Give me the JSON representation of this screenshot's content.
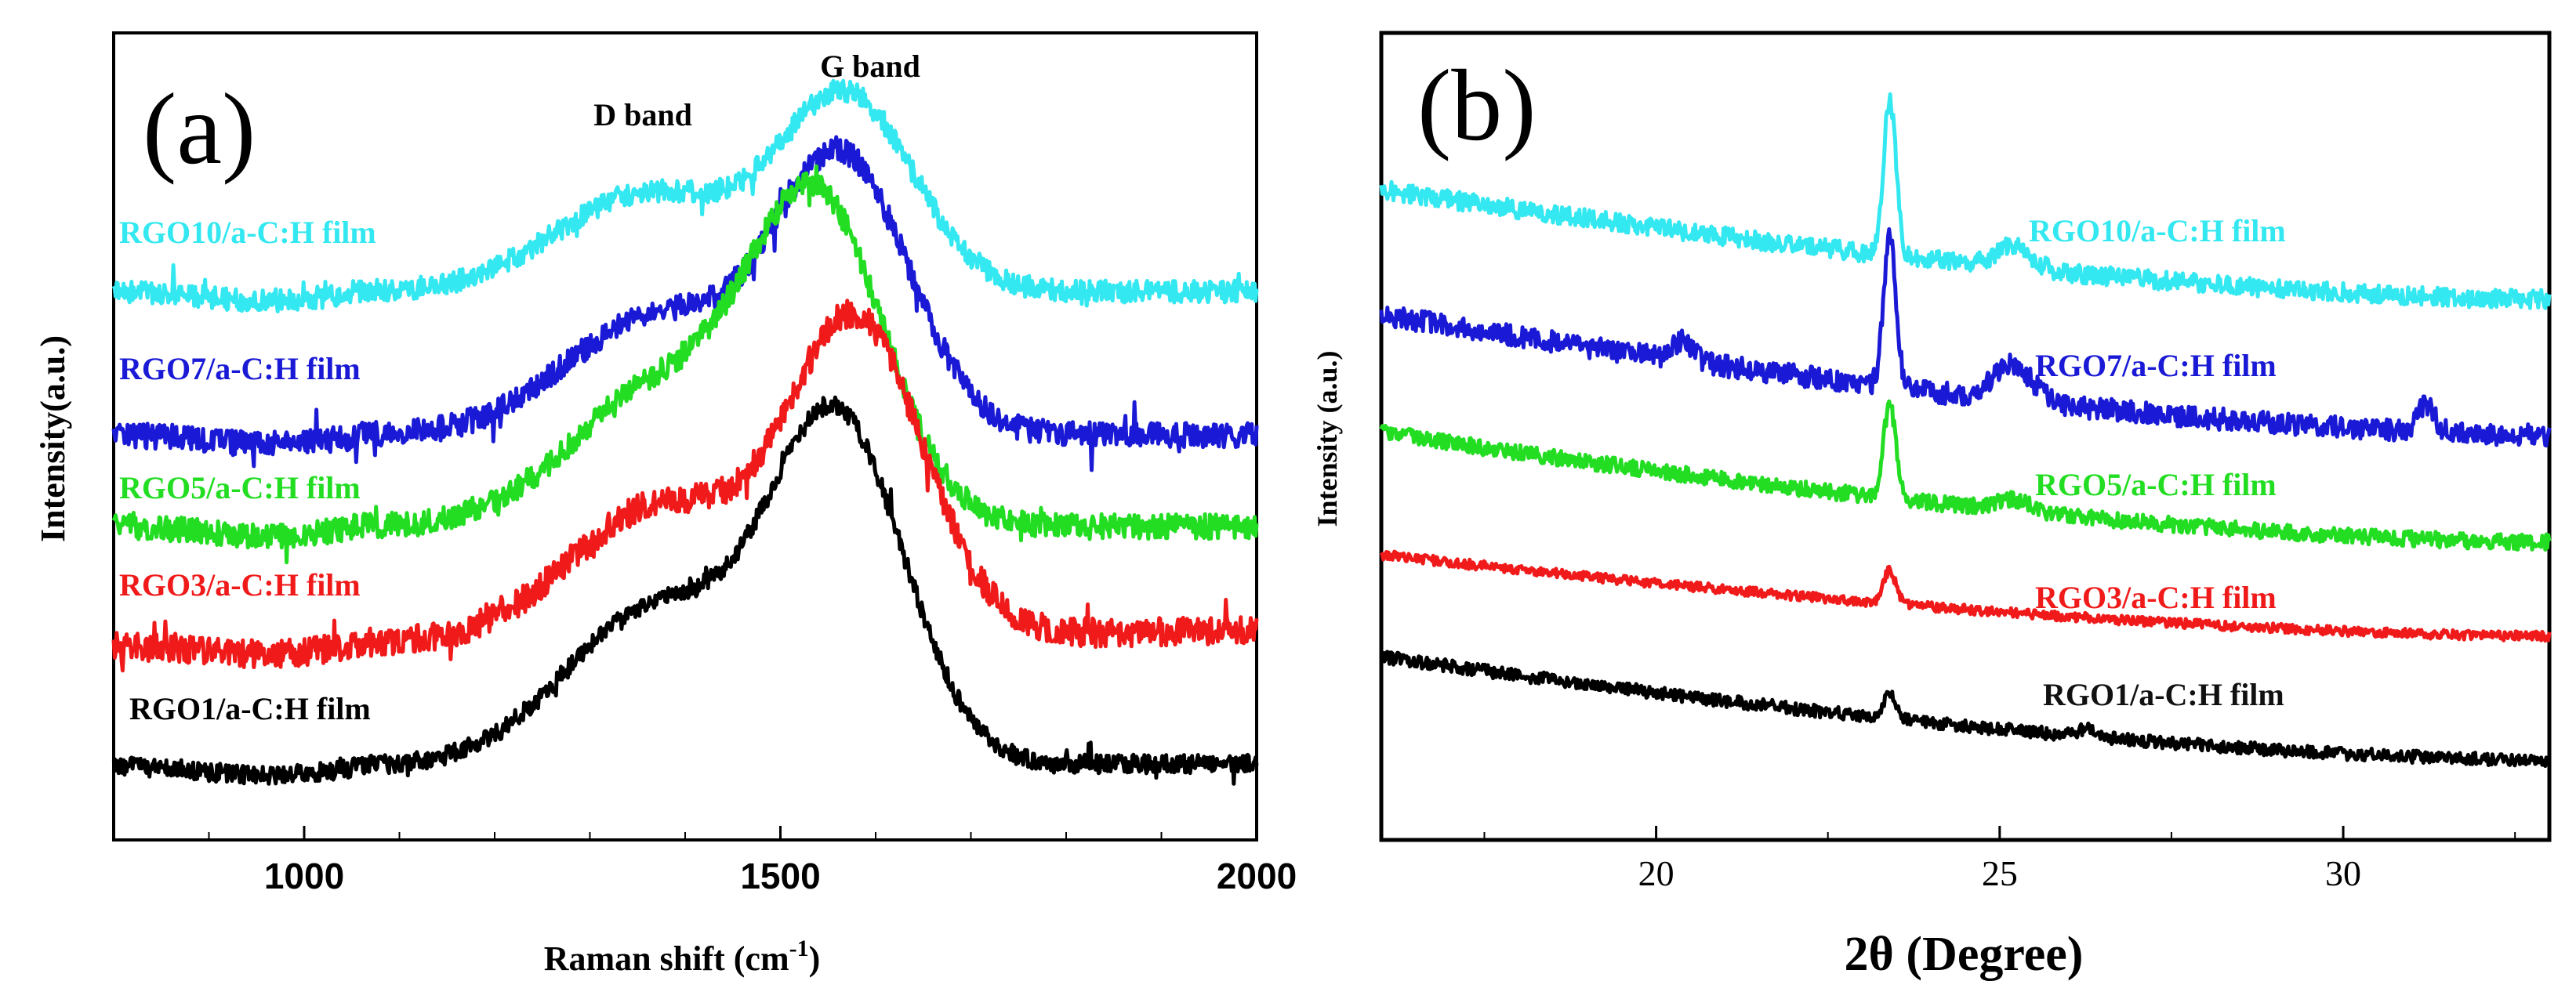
{
  "chart_data": [
    {
      "type": "line",
      "panel": "(a)",
      "xlabel": "Raman shift (cm",
      "xlabel_sup": "-1",
      "xlabel_close": ")",
      "ylabel": "Intensity(a.u.)",
      "xlim": [
        800,
        2000
      ],
      "xticks": [
        "1000",
        "1500",
        "2000"
      ],
      "xtick_values": [
        1000,
        1500,
        2000
      ],
      "annotations": [
        {
          "text": "D band",
          "x": 1360
        },
        {
          "text": "G band",
          "x": 1575
        }
      ],
      "series": [
        {
          "name": "RGO10/a-C:H film",
          "color": "#33e8f0"
        },
        {
          "name": "RGO7/a-C:H film",
          "color": "#1a1ad6"
        },
        {
          "name": "RGO5/a-C:H film",
          "color": "#22dd22"
        },
        {
          "name": "RGO3/a-C:H film",
          "color": "#f01a1a"
        },
        {
          "name": "RGO1/a-C:H film",
          "color": "#000000"
        }
      ]
    },
    {
      "type": "line",
      "panel": "(b)",
      "xlabel": "2θ (Degree)",
      "ylabel": "Intensity (a.u.)",
      "xlim": [
        16,
        33
      ],
      "xticks": [
        "20",
        "25",
        "30"
      ],
      "xtick_values": [
        20,
        25,
        30
      ],
      "series": [
        {
          "name": "RGO10/a-C:H film",
          "color": "#33e8f0"
        },
        {
          "name": "RGO7/a-C:H film",
          "color": "#1a1ad6"
        },
        {
          "name": "RGO5/a-C:H film",
          "color": "#22dd22"
        },
        {
          "name": "RGO3/a-C:H film",
          "color": "#f01a1a"
        },
        {
          "name": "RGO1/a-C:H film",
          "color": "#000000"
        }
      ]
    }
  ]
}
